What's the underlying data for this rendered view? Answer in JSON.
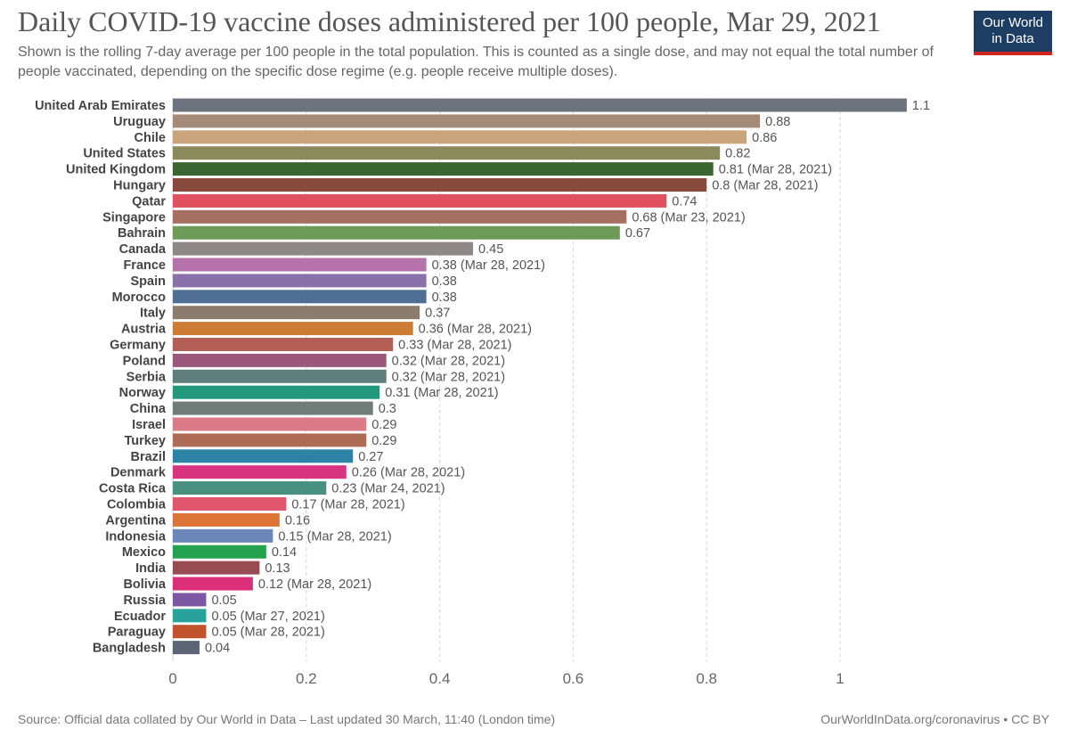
{
  "chart_data": {
    "type": "bar",
    "orientation": "horizontal",
    "title": "Daily COVID-19 vaccine doses administered per 100 people, Mar 29, 2021",
    "subtitle": "Shown is the rolling 7-day average per 100 people in the total population. This is counted as a single dose, and may not equal the total number of people vaccinated, depending on the specific dose regime (e.g. people receive multiple doses).",
    "categories": [
      "United Arab Emirates",
      "Uruguay",
      "Chile",
      "United States",
      "United Kingdom",
      "Hungary",
      "Qatar",
      "Singapore",
      "Bahrain",
      "Canada",
      "France",
      "Spain",
      "Morocco",
      "Italy",
      "Austria",
      "Germany",
      "Poland",
      "Serbia",
      "Norway",
      "China",
      "Israel",
      "Turkey",
      "Brazil",
      "Denmark",
      "Costa Rica",
      "Colombia",
      "Argentina",
      "Indonesia",
      "Mexico",
      "India",
      "Bolivia",
      "Russia",
      "Ecuador",
      "Paraguay",
      "Bangladesh"
    ],
    "values": [
      1.1,
      0.88,
      0.86,
      0.82,
      0.81,
      0.8,
      0.74,
      0.68,
      0.67,
      0.45,
      0.38,
      0.38,
      0.38,
      0.37,
      0.36,
      0.33,
      0.32,
      0.32,
      0.31,
      0.3,
      0.29,
      0.29,
      0.27,
      0.26,
      0.23,
      0.17,
      0.16,
      0.15,
      0.14,
      0.13,
      0.12,
      0.05,
      0.05,
      0.05,
      0.04
    ],
    "value_labels": [
      "1.1",
      "0.88",
      "0.86",
      "0.82",
      "0.81 (Mar 28, 2021)",
      "0.8 (Mar 28, 2021)",
      "0.74",
      "0.68 (Mar 23, 2021)",
      "0.67",
      "0.45",
      "0.38 (Mar 28, 2021)",
      "0.38",
      "0.38",
      "0.37",
      "0.36 (Mar 28, 2021)",
      "0.33 (Mar 28, 2021)",
      "0.32 (Mar 28, 2021)",
      "0.32 (Mar 28, 2021)",
      "0.31 (Mar 28, 2021)",
      "0.3",
      "0.29",
      "0.29",
      "0.27",
      "0.26 (Mar 28, 2021)",
      "0.23 (Mar 24, 2021)",
      "0.17 (Mar 28, 2021)",
      "0.16",
      "0.15 (Mar 28, 2021)",
      "0.14",
      "0.13",
      "0.12 (Mar 28, 2021)",
      "0.05",
      "0.05 (Mar 27, 2021)",
      "0.05 (Mar 28, 2021)",
      "0.04"
    ],
    "colors": [
      "#6d737c",
      "#a38b78",
      "#c9a47c",
      "#8b8a5c",
      "#3b6531",
      "#884a3c",
      "#e0505f",
      "#a57062",
      "#6d9a59",
      "#8f8888",
      "#b672aa",
      "#8b71aa",
      "#4f6e93",
      "#8c7c6e",
      "#cc7c35",
      "#b45f55",
      "#9c587a",
      "#5f7d7a",
      "#22997d",
      "#6f7c77",
      "#db7b87",
      "#ae6b55",
      "#2d83a5",
      "#d8347f",
      "#4a9080",
      "#e0566d",
      "#dc7537",
      "#6b86b9",
      "#24a14e",
      "#974c53",
      "#db2f79",
      "#7c58a4",
      "#28a39c",
      "#c0522e",
      "#5b6576"
    ],
    "xticks": [
      "0",
      "0.2",
      "0.4",
      "0.6",
      "0.8",
      "1"
    ],
    "xlim": [
      0,
      1.1
    ],
    "grid": "vertical-dashed",
    "legend": "none"
  },
  "logo": {
    "line1": "Our World",
    "line2": "in Data"
  },
  "footer": {
    "source": "Source: Official data collated by Our World in Data – Last updated 30 March, 11:40 (London time)",
    "credit": "OurWorldInData.org/coronavirus • CC BY"
  }
}
